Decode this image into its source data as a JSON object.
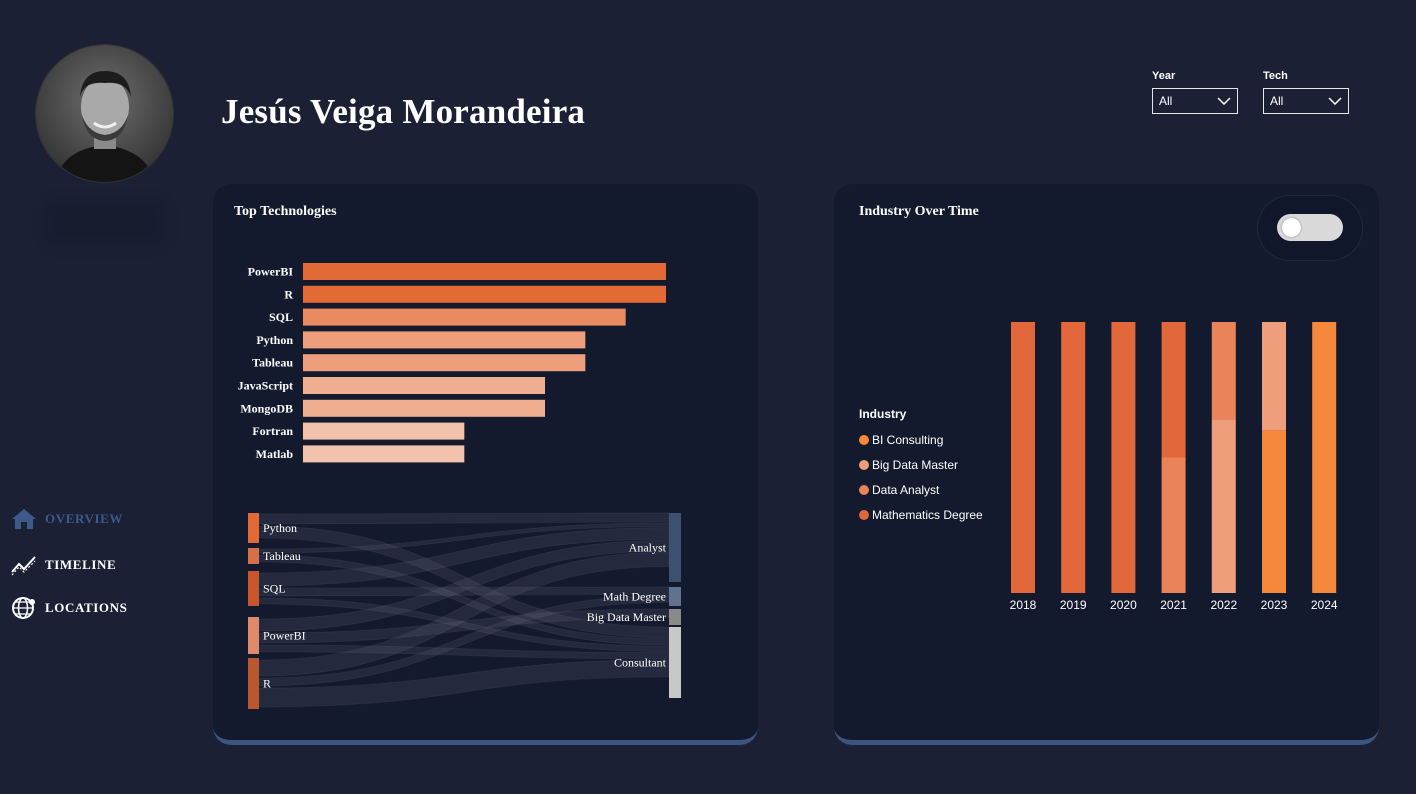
{
  "header": {
    "name": "Jesús Veiga Morandeira",
    "profile_photo": "profile-photo"
  },
  "filters": {
    "year": {
      "label": "Year",
      "value": "All"
    },
    "tech": {
      "label": "Tech",
      "value": "All"
    }
  },
  "nav": {
    "items": [
      {
        "label": "OVERVIEW",
        "icon": "home-icon",
        "active": true
      },
      {
        "label": "TIMELINE",
        "icon": "line-chart-icon",
        "active": false
      },
      {
        "label": "LOCATIONS",
        "icon": "globe-icon",
        "active": false
      }
    ]
  },
  "colors": {
    "background": "#1b2035",
    "card": "#141a2e",
    "accent_border": "#3b5580",
    "bar_shades": [
      "#e46a35",
      "#e46a35",
      "#ea8a60",
      "#ee9e7b",
      "#ee9e7b",
      "#f0ae91",
      "#f0ae91",
      "#f3c2ac",
      "#f3c2ac"
    ]
  },
  "top_technologies": {
    "title": "Top Technologies",
    "chart_data": {
      "type": "bar",
      "orientation": "horizontal",
      "categories": [
        "PowerBI",
        "R",
        "SQL",
        "Python",
        "Tableau",
        "JavaScript",
        "MongoDB",
        "Fortran",
        "Matlab"
      ],
      "values": [
        9,
        9,
        8,
        7,
        7,
        6,
        6,
        4,
        4
      ]
    }
  },
  "sankey": {
    "sources": [
      {
        "label": "Python",
        "color": "#e46a35"
      },
      {
        "label": "Tableau",
        "color": "#d6704a"
      },
      {
        "label": "SQL",
        "color": "#c9552d"
      },
      {
        "label": "PowerBI",
        "color": "#e08a6c"
      },
      {
        "label": "R",
        "color": "#b9582c"
      }
    ],
    "targets": [
      {
        "label": "Analyst",
        "color": "#3c5070"
      },
      {
        "label": "Math Degree",
        "color": "#5f7390"
      },
      {
        "label": "Big Data Master",
        "color": "#8a8a8a"
      },
      {
        "label": "Consultant",
        "color": "#c8c8c8"
      }
    ]
  },
  "industry_over_time": {
    "title": "Industry Over Time",
    "toggle_on": false,
    "legend": {
      "title": "Industry",
      "items": [
        {
          "label": "BI Consulting",
          "color": "#f5883a"
        },
        {
          "label": "Big Data Master",
          "color": "#ee9e7b"
        },
        {
          "label": "Data Analyst",
          "color": "#ea8458"
        },
        {
          "label": "Mathematics Degree",
          "color": "#e2673a"
        }
      ]
    },
    "chart_data": {
      "type": "bar",
      "stacked": true,
      "percent": true,
      "categories": [
        "2018",
        "2019",
        "2020",
        "2021",
        "2022",
        "2023",
        "2024"
      ],
      "series": [
        {
          "name": "Mathematics Degree",
          "values": [
            100,
            100,
            100,
            50,
            0,
            0,
            0
          ]
        },
        {
          "name": "Data Analyst",
          "values": [
            0,
            0,
            0,
            50,
            36,
            0,
            0
          ]
        },
        {
          "name": "Big Data Master",
          "values": [
            0,
            0,
            0,
            0,
            64,
            40,
            0
          ]
        },
        {
          "name": "BI Consulting",
          "values": [
            0,
            0,
            0,
            0,
            0,
            60,
            100
          ]
        }
      ]
    }
  }
}
